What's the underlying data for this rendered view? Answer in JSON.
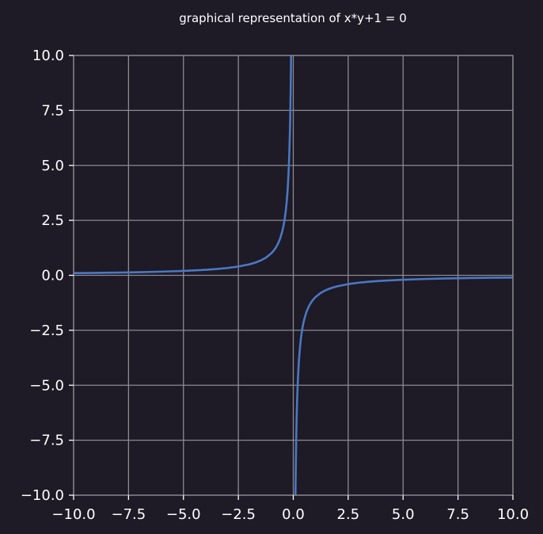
{
  "chart_data": {
    "type": "line",
    "title": "graphical representation of x*y+1 = 0",
    "xlabel": "",
    "ylabel": "",
    "xlim": [
      -10,
      10
    ],
    "ylim": [
      -10,
      10
    ],
    "grid": true,
    "legend": "none",
    "x_ticks": [
      -10,
      -7.5,
      -5,
      -2.5,
      0,
      2.5,
      5,
      7.5,
      10
    ],
    "y_ticks": [
      -10,
      -7.5,
      -5,
      -2.5,
      0,
      2.5,
      5,
      7.5,
      10
    ],
    "x_tick_labels": [
      "−10.0",
      "−7.5",
      "−5.0",
      "−2.5",
      "0.0",
      "2.5",
      "5.0",
      "7.5",
      "10.0"
    ],
    "y_tick_labels": [
      "−10.0",
      "−7.5",
      "−5.0",
      "−2.5",
      "0.0",
      "2.5",
      "5.0",
      "7.5",
      "10.0"
    ],
    "series": [
      {
        "color": "#4a78c4",
        "segments": [
          {
            "x": [
              -10,
              -9,
              -8,
              -7,
              -6,
              -5,
              -4,
              -3.5,
              -3,
              -2.5,
              -2,
              -1.75,
              -1.5,
              -1.25,
              -1,
              -0.9,
              -0.8,
              -0.7,
              -0.6,
              -0.5,
              -0.45,
              -0.4,
              -0.35,
              -0.3,
              -0.27,
              -0.25,
              -0.22,
              -0.2,
              -0.18,
              -0.16,
              -0.15,
              -0.14,
              -0.13,
              -0.12,
              -0.11,
              -0.1
            ],
            "y": [
              0.1,
              0.1111,
              0.125,
              0.1429,
              0.1667,
              0.2,
              0.25,
              0.2857,
              0.3333,
              0.4,
              0.5,
              0.5714,
              0.6667,
              0.8,
              1,
              1.1111,
              1.25,
              1.4286,
              1.6667,
              2,
              2.2222,
              2.5,
              2.8571,
              3.3333,
              3.7037,
              4,
              4.5455,
              5,
              5.5556,
              6.25,
              6.6667,
              7.1429,
              7.6923,
              8.3333,
              9.0909,
              10
            ]
          },
          {
            "x": [
              0.1,
              0.11,
              0.12,
              0.13,
              0.14,
              0.15,
              0.16,
              0.18,
              0.2,
              0.22,
              0.25,
              0.27,
              0.3,
              0.35,
              0.4,
              0.45,
              0.5,
              0.6,
              0.7,
              0.8,
              0.9,
              1,
              1.25,
              1.5,
              1.75,
              2,
              2.5,
              3,
              3.5,
              4,
              5,
              6,
              7,
              8,
              9,
              10
            ],
            "y": [
              -10,
              -9.0909,
              -8.3333,
              -7.6923,
              -7.1429,
              -6.6667,
              -6.25,
              -5.5556,
              -5,
              -4.5455,
              -4,
              -3.7037,
              -3.3333,
              -2.8571,
              -2.5,
              -2.2222,
              -2,
              -1.6667,
              -1.4286,
              -1.25,
              -1.1111,
              -1,
              -0.8,
              -0.6667,
              -0.5714,
              -0.5,
              -0.4,
              -0.3333,
              -0.2857,
              -0.25,
              -0.2,
              -0.1667,
              -0.1429,
              -0.125,
              -0.1111,
              -0.1
            ]
          }
        ]
      }
    ]
  }
}
